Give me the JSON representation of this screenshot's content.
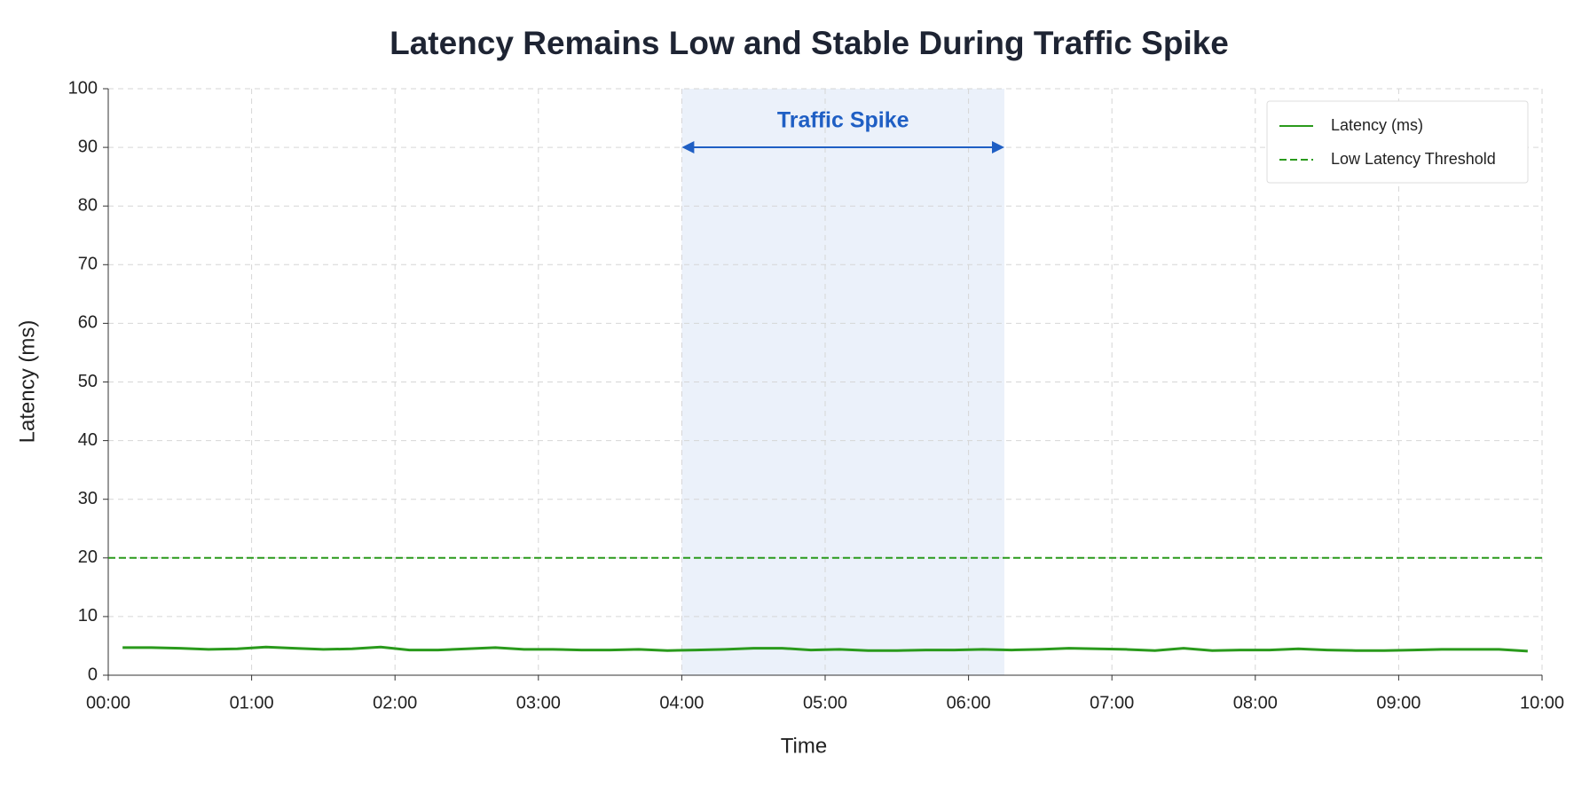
{
  "chart_data": {
    "type": "line",
    "title": "Latency Remains Low and Stable During Traffic Spike",
    "x_label": "Time",
    "y_label": "Latency (ms)",
    "x": [
      0.1,
      0.3,
      0.5,
      0.7,
      0.9,
      1.1,
      1.3,
      1.5,
      1.7,
      1.9,
      2.1,
      2.3,
      2.5,
      2.7,
      2.9,
      3.1,
      3.3,
      3.5,
      3.7,
      3.9,
      4.1,
      4.3,
      4.5,
      4.7,
      4.9,
      5.1,
      5.3,
      5.5,
      5.7,
      5.9,
      6.1,
      6.3,
      6.5,
      6.7,
      6.9,
      7.1,
      7.3,
      7.5,
      7.7,
      7.9,
      8.1,
      8.3,
      8.5,
      8.7,
      8.9,
      9.1,
      9.3,
      9.5,
      9.7,
      9.9
    ],
    "series": [
      {
        "name": "Latency (ms)",
        "color": "#2a9a1c",
        "values": [
          4.7,
          4.7,
          4.6,
          4.4,
          4.5,
          4.8,
          4.6,
          4.4,
          4.5,
          4.8,
          4.3,
          4.3,
          4.5,
          4.7,
          4.4,
          4.4,
          4.3,
          4.3,
          4.4,
          4.2,
          4.3,
          4.4,
          4.6,
          4.6,
          4.3,
          4.4,
          4.2,
          4.2,
          4.3,
          4.3,
          4.4,
          4.3,
          4.4,
          4.6,
          4.5,
          4.4,
          4.2,
          4.6,
          4.2,
          4.3,
          4.3,
          4.5,
          4.3,
          4.2,
          4.2,
          4.3,
          4.4,
          4.4,
          4.4,
          4.1
        ]
      }
    ],
    "threshold": {
      "name": "Low Latency Threshold",
      "value": 20,
      "color": "#2a9a1c"
    },
    "highlight": {
      "label": "Traffic Spike",
      "span": [
        4,
        6.25
      ],
      "color": "#1f5fc4"
    },
    "xlim": [
      0,
      10
    ],
    "xticks": [
      {
        "value": 0,
        "label": "00:00"
      },
      {
        "value": 1,
        "label": "01:00"
      },
      {
        "value": 2,
        "label": "02:00"
      },
      {
        "value": 3,
        "label": "03:00"
      },
      {
        "value": 4,
        "label": "04:00"
      },
      {
        "value": 5,
        "label": "05:00"
      },
      {
        "value": 6,
        "label": "06:00"
      },
      {
        "value": 7,
        "label": "07:00"
      },
      {
        "value": 8,
        "label": "08:00"
      },
      {
        "value": 9,
        "label": "09:00"
      },
      {
        "value": 10,
        "label": "10:00"
      }
    ],
    "ylim": [
      0,
      100
    ],
    "yticks": [
      0,
      10,
      20,
      30,
      40,
      50,
      60,
      70,
      80,
      90,
      100
    ],
    "grid": true,
    "legend": "upper right"
  }
}
